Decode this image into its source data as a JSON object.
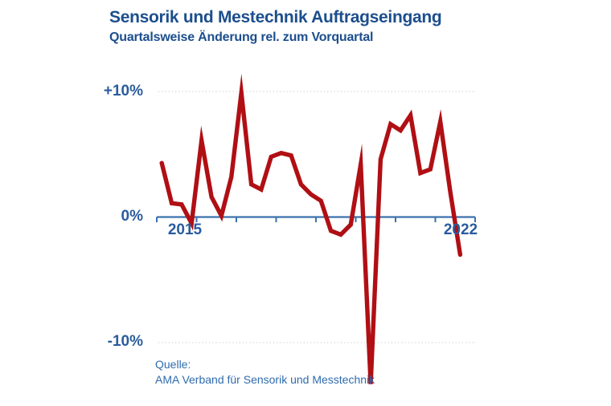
{
  "header": {
    "title": "Sensorik und Mestechnik Auftragseingang",
    "subtitle": "Quartalsweise Änderung rel. zum Vorquartal"
  },
  "source": {
    "label": "Quelle:",
    "name": "AMA Verband für Sensorik und Messtechnik"
  },
  "colors": {
    "line": "#b00f14",
    "axis": "#3a72ad",
    "axis_labels": "#2b5c9d",
    "title_text": "#1c4e8d",
    "grid": "#d2d2d2",
    "source_text": "#2e6cad",
    "background": "#ffffff"
  },
  "chart_data": {
    "type": "line",
    "title": "Sensorik und Mestechnik Auftragseingang",
    "subtitle": "Quartalsweise Änderung rel. zum Vorquartal",
    "unit": "percent change vs. previous quarter",
    "categories": [
      "2015 Q1",
      "2015 Q2",
      "2015 Q3",
      "2015 Q4",
      "2016 Q1",
      "2016 Q2",
      "2016 Q3",
      "2016 Q4",
      "2017 Q1",
      "2017 Q2",
      "2017 Q3",
      "2017 Q4",
      "2018 Q1",
      "2018 Q2",
      "2018 Q3",
      "2018 Q4",
      "2019 Q1",
      "2019 Q2",
      "2019 Q3",
      "2019 Q4",
      "2020 Q1",
      "2020 Q2",
      "2020 Q3",
      "2020 Q4",
      "2021 Q1",
      "2021 Q2",
      "2021 Q3",
      "2021 Q4",
      "2022 Q1",
      "2022 Q2",
      "2022 Q3"
    ],
    "values": [
      4.3,
      1.1,
      1.0,
      -0.5,
      6.1,
      1.6,
      0.1,
      3.2,
      9.9,
      2.6,
      2.2,
      4.8,
      5.1,
      4.9,
      2.6,
      1.8,
      1.3,
      -1.1,
      -1.4,
      -0.6,
      4.2,
      -13.3,
      4.6,
      7.4,
      6.9,
      8.1,
      3.5,
      3.8,
      7.6,
      2.0,
      -3.0
    ],
    "ylim": [
      -14.5,
      11
    ],
    "xlim_years": [
      2015,
      2023
    ],
    "x_tick_years": [
      2015,
      2016,
      2017,
      2018,
      2019,
      2020,
      2021,
      2022,
      2023
    ],
    "y_ticks": [
      {
        "label": "+10%",
        "value": 10
      },
      {
        "label": "0%",
        "value": 0
      },
      {
        "label": "-10%",
        "value": -10
      }
    ],
    "x_labels": [
      {
        "label": "2015",
        "year": 2015
      },
      {
        "label": "2022",
        "year": 2022
      }
    ],
    "gridlines": [
      10,
      -10
    ],
    "grid_style": "dotted horizontal at +10% and -10% only",
    "legend": "none",
    "line_color": "#b00f14"
  }
}
